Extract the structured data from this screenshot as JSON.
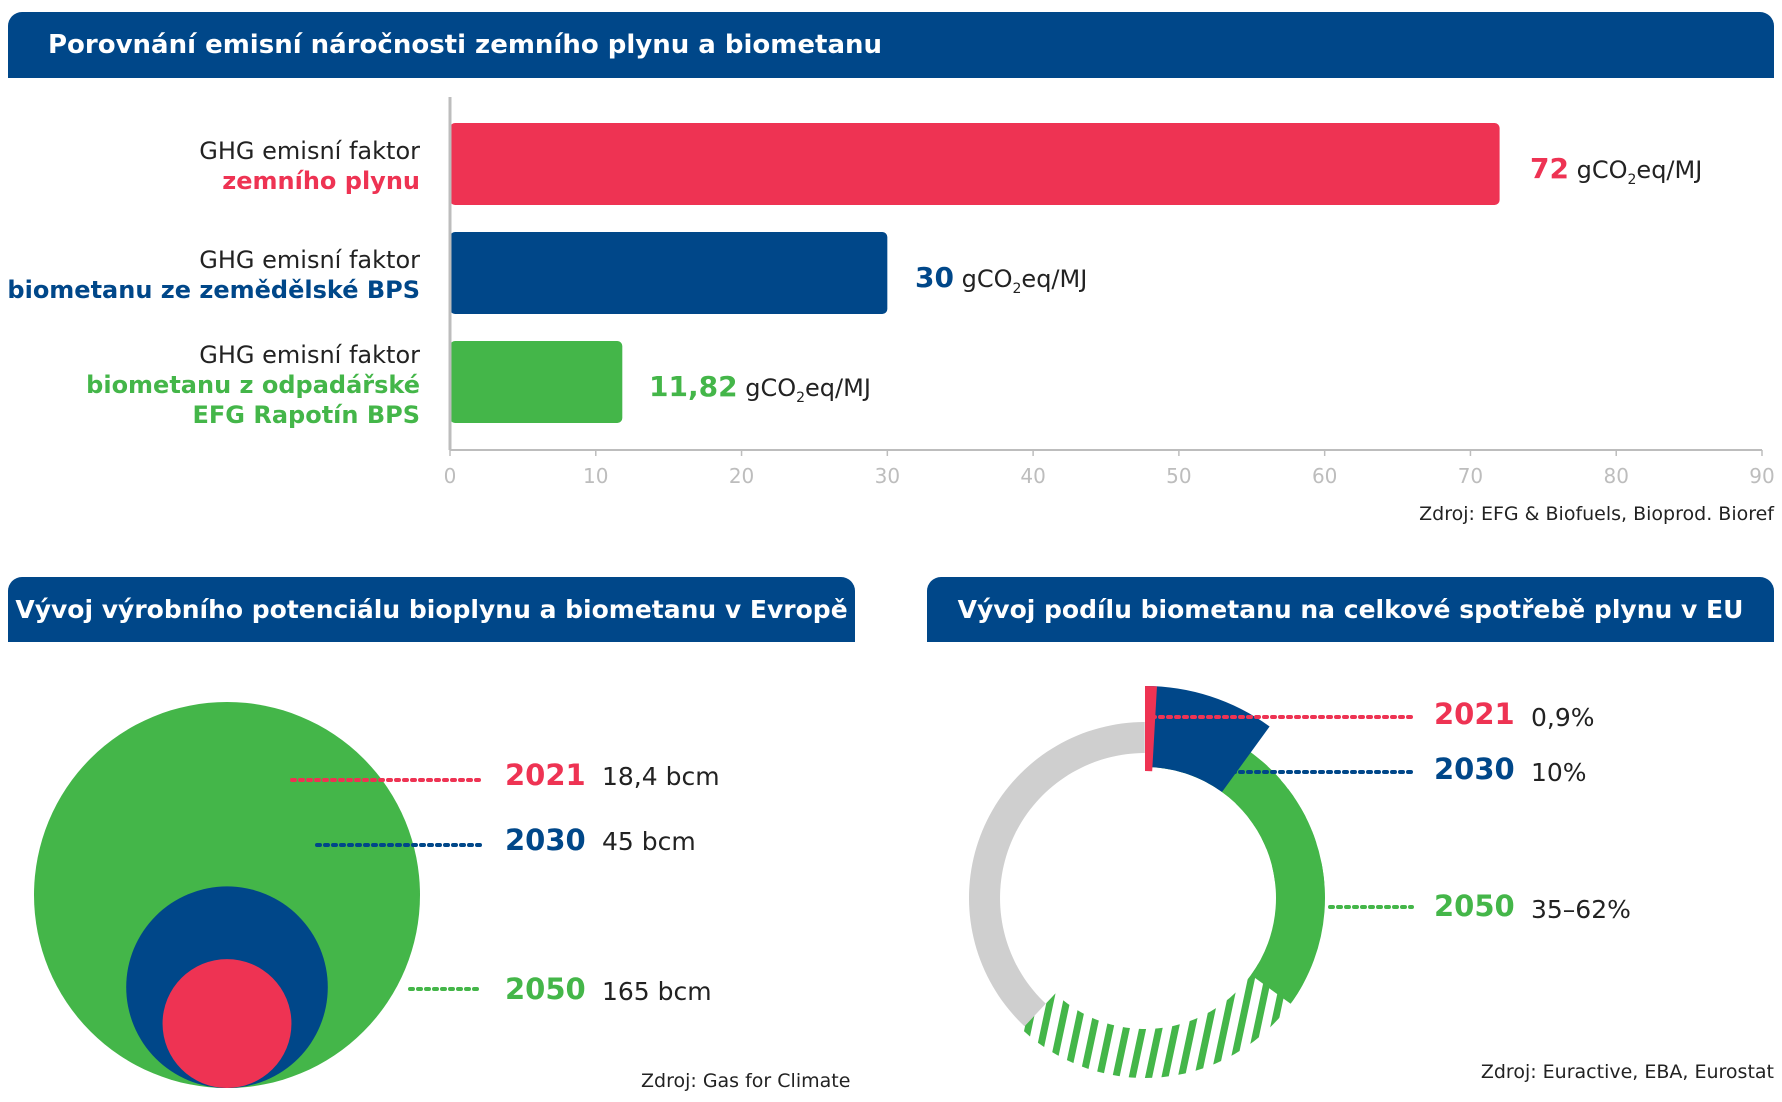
{
  "colors": {
    "navy": "#004789",
    "red": "#ee3353",
    "green": "#44b649",
    "grey": "#cfcfcf",
    "axis": "#bdbdbd"
  },
  "section1": {
    "title": "Porovnání emisní náročnosti zemního plynu a biometanu",
    "source": "Zdroj: EFG & Biofuels, Bioprod. Bioref",
    "bars": [
      {
        "line1": "GHG emisní faktor",
        "line2": "zemního plynu",
        "line3": "",
        "value": 72,
        "value_label": "72",
        "unit_pre": "gCO",
        "unit_sub": "2",
        "unit_post": "eq/MJ",
        "color": "#ee3353"
      },
      {
        "line1": "GHG emisní faktor",
        "line2": "biometanu ze zemědělské BPS",
        "line3": "",
        "value": 30,
        "value_label": "30",
        "unit_pre": "gCO",
        "unit_sub": "2",
        "unit_post": "eq/MJ",
        "color": "#004789"
      },
      {
        "line1": "GHG emisní faktor",
        "line2": "biometanu z odpadářské",
        "line3": "EFG Rapotín BPS",
        "value": 11.82,
        "value_label": "11,82",
        "unit_pre": "gCO",
        "unit_sub": "2",
        "unit_post": "eq/MJ",
        "color": "#44b649"
      }
    ]
  },
  "section2": {
    "title": "Vývoj výrobního potenciálu bioplynu a biometanu v Evropě",
    "source": "Zdroj: Gas for Climate",
    "items": [
      {
        "year": "2021",
        "value": "18,4 bcm",
        "bcm": 18.4,
        "color": "#ee3353"
      },
      {
        "year": "2030",
        "value": "45 bcm",
        "bcm": 45,
        "color": "#004789"
      },
      {
        "year": "2050",
        "value": "165 bcm",
        "bcm": 165,
        "color": "#44b649"
      }
    ]
  },
  "section3": {
    "title": "Vývoj podílu biometanu na celkové spotřebě plynu v EU",
    "source": "Zdroj: Euractive, EBA, Eurostat",
    "items": [
      {
        "year": "2021",
        "value": "0,9%",
        "share_pct": 0.9,
        "color": "#ee3353"
      },
      {
        "year": "2030",
        "value": "10%",
        "share_pct": 10,
        "color": "#004789"
      },
      {
        "year": "2050",
        "value": "35–62%",
        "share_pct_min": 35,
        "share_pct_max": 62,
        "color": "#44b649"
      }
    ]
  },
  "chart_data": [
    {
      "type": "bar",
      "orientation": "horizontal",
      "title": "Porovnání emisní náročnosti zemního plynu a biometanu",
      "categories": [
        "GHG emisní faktor zemního plynu",
        "GHG emisní faktor biometanu ze zemědělské BPS",
        "GHG emisní faktor biometanu z odpadářské EFG Rapotín BPS"
      ],
      "values": [
        72,
        30,
        11.82
      ],
      "xlim": [
        0,
        90
      ],
      "ticks": [
        "0",
        "10",
        "20",
        "30",
        "40",
        "50",
        "60",
        "70",
        "80",
        "90"
      ],
      "unit": "gCO2eq/MJ"
    },
    {
      "type": "bubble",
      "title": "Vývoj výrobního potenciálu bioplynu a biometanu v Evropě",
      "categories": [
        "2021",
        "2030",
        "2050"
      ],
      "values": [
        18.4,
        45,
        165
      ],
      "unit": "bcm"
    },
    {
      "type": "donut",
      "title": "Vývoj podílu biometanu na celkové spotřebě plynu v EU",
      "categories": [
        "2021",
        "2030",
        "2050"
      ],
      "values": [
        0.9,
        10,
        [
          35,
          62
        ]
      ],
      "unit": "%"
    }
  ]
}
